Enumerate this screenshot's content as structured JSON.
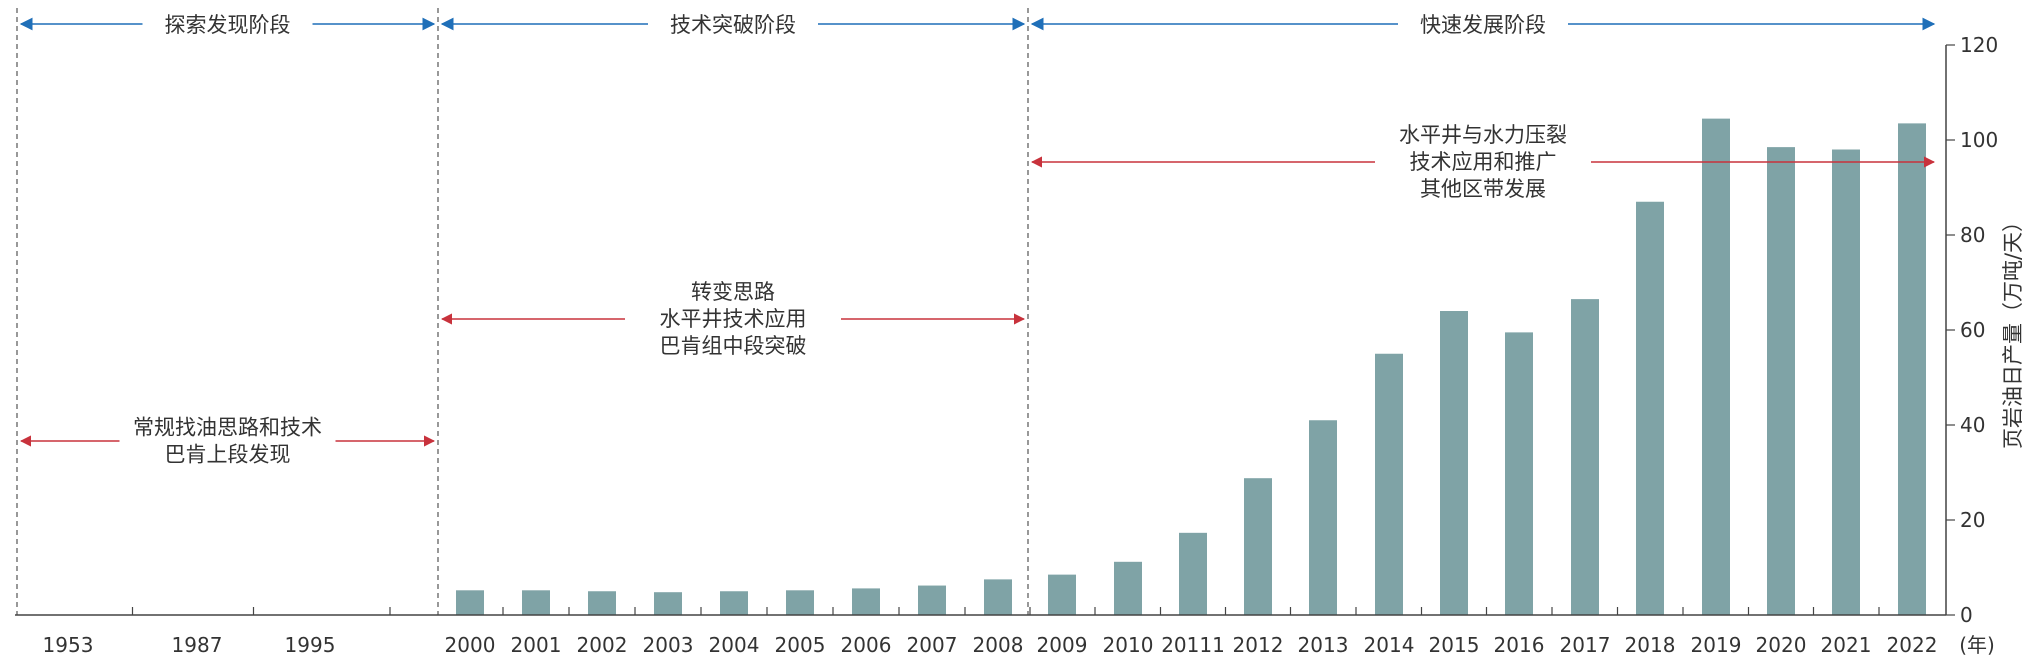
{
  "chart_data": {
    "type": "bar",
    "categories": [
      "1953",
      "1987",
      "1995",
      "2000",
      "2001",
      "2002",
      "2003",
      "2004",
      "2005",
      "2006",
      "2007",
      "2008",
      "2009",
      "2010",
      "20111",
      "2012",
      "2013",
      "2014",
      "2015",
      "2016",
      "2017",
      "2018",
      "2019",
      "2020",
      "2021",
      "2022"
    ],
    "values": [
      null,
      null,
      null,
      5.2,
      5.2,
      5.0,
      4.8,
      5.0,
      5.2,
      5.6,
      6.2,
      7.5,
      8.5,
      11.2,
      17.3,
      28.8,
      41.0,
      55.0,
      64.0,
      59.5,
      66.5,
      87.0,
      104.5,
      98.5,
      98.0,
      103.5
    ],
    "xlabel": "(年)",
    "ylabel": "页岩油日产量（万吨/天）",
    "ylim": [
      0,
      120
    ],
    "yticks": [
      0,
      20,
      40,
      60,
      80,
      100,
      120
    ],
    "bar_color": "#7fa3a6",
    "stages": [
      {
        "label": "探索发现阶段",
        "from": "1953",
        "to": "1995",
        "color": "#1f6fb8"
      },
      {
        "label": "技术突破阶段",
        "from": "2000",
        "to": "2008",
        "color": "#1f6fb8"
      },
      {
        "label": "快速发展阶段",
        "from": "2009",
        "to": "2022",
        "color": "#1f6fb8"
      }
    ],
    "notes": [
      {
        "lines": [
          "常规找油思路和技术",
          "巴肯上段发现"
        ],
        "from": "1953",
        "to": "1995",
        "color": "#c8323c"
      },
      {
        "lines": [
          "转变思路",
          "水平井技术应用",
          "巴肯组中段突破"
        ],
        "from": "2000",
        "to": "2008",
        "color": "#c8323c"
      },
      {
        "lines": [
          "水平井与水力压裂",
          "技术应用和推广",
          "其他区带发展"
        ],
        "from": "2009",
        "to": "2022",
        "color": "#c8323c"
      }
    ]
  }
}
